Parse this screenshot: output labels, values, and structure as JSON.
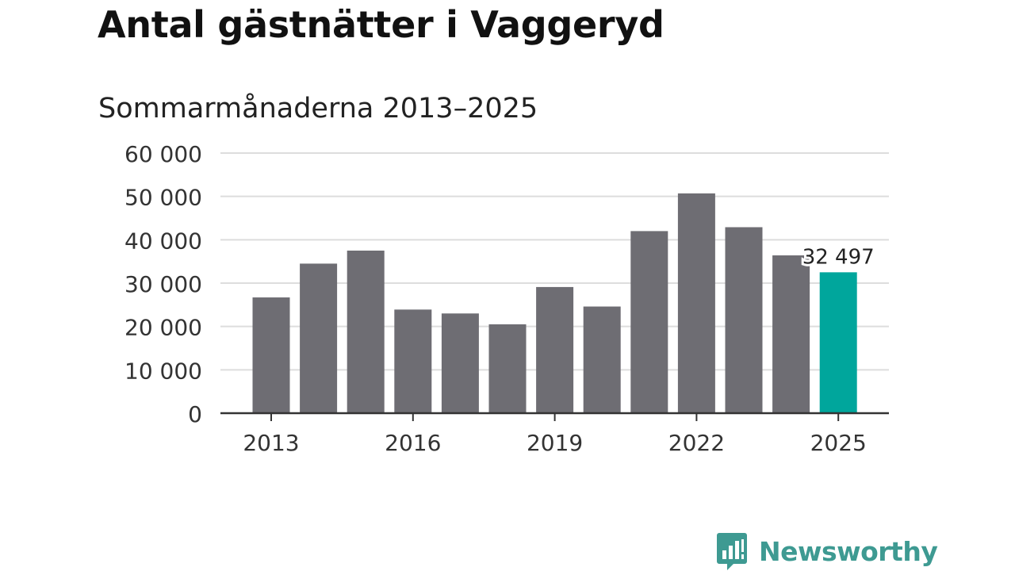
{
  "chart_data": {
    "type": "bar",
    "title": "Antal gästnätter i Vaggeryd",
    "subtitle": "Sommarmånaderna 2013–2025",
    "categories": [
      "2013",
      "2014",
      "2015",
      "2016",
      "2017",
      "2018",
      "2019",
      "2020",
      "2021",
      "2022",
      "2023",
      "2024",
      "2025"
    ],
    "values": [
      26700,
      34500,
      37500,
      23900,
      23000,
      20500,
      29100,
      24600,
      42000,
      50700,
      42900,
      36400,
      32497
    ],
    "highlight_index": 12,
    "highlight_label": "32 497",
    "x_tick_labels": [
      "2013",
      "2016",
      "2019",
      "2022",
      "2025"
    ],
    "y_tick_labels": [
      "0",
      "10 000",
      "20 000",
      "30 000",
      "40 000",
      "50 000",
      "60 000"
    ],
    "y_ticks": [
      0,
      10000,
      20000,
      30000,
      40000,
      50000,
      60000
    ],
    "ylim": [
      0,
      60000
    ],
    "xlabel": "",
    "ylabel": "",
    "grid": true,
    "colors": {
      "bar": "#6e6d73",
      "highlight": "#00a69c",
      "grid": "#dddddd",
      "axis": "#333333"
    }
  },
  "logo": {
    "text": "Newsworthy",
    "icon": "newsworthy-chart-bubble-icon",
    "color": "#3e9a92"
  }
}
